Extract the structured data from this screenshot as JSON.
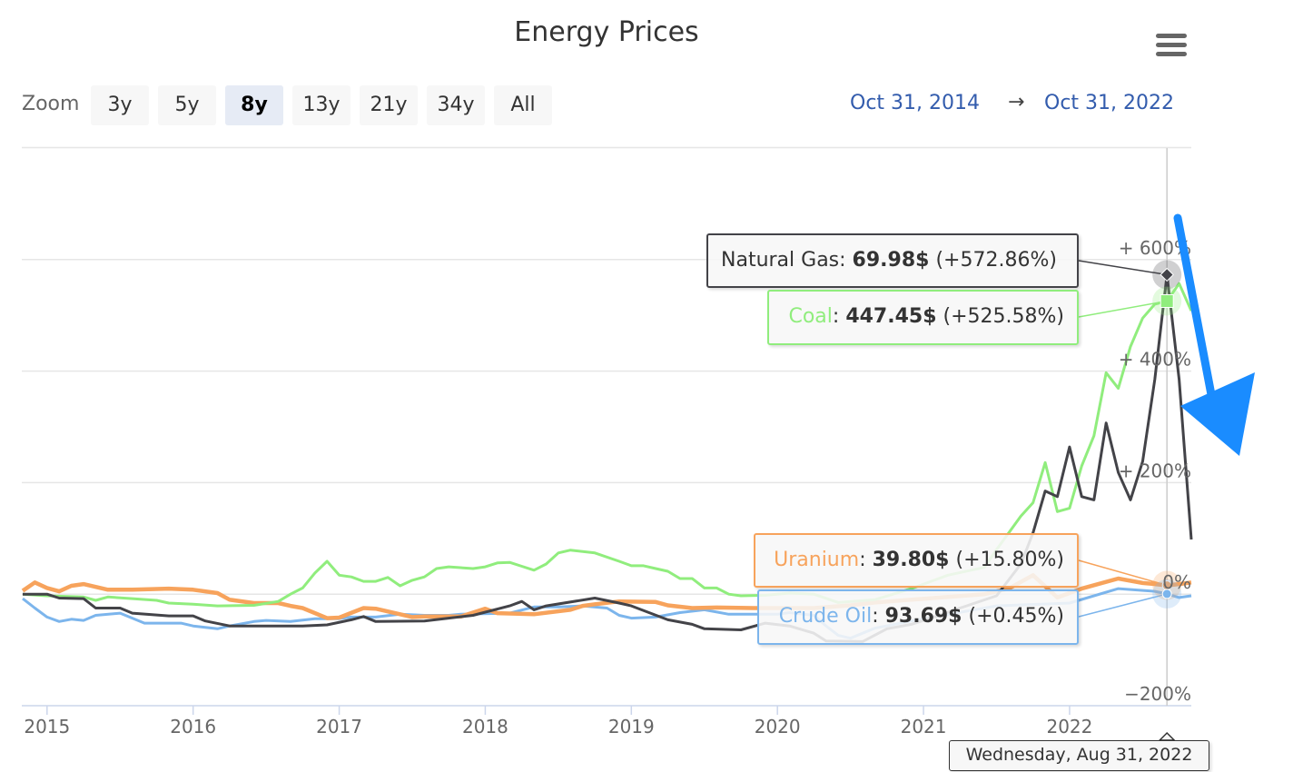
{
  "header": {
    "title": "Energy Prices",
    "menu_icon": "hamburger-menu-icon"
  },
  "range_selector": {
    "zoom_label": "Zoom",
    "buttons": [
      "3y",
      "5y",
      "8y",
      "13y",
      "21y",
      "34y",
      "All"
    ],
    "selected": "8y",
    "from": "Oct 31, 2014",
    "separator": "→",
    "to": "Oct 31, 2022"
  },
  "tooltip": {
    "date": "Wednesday, Aug 31, 2022",
    "rows": [
      {
        "series": "Natural Gas",
        "value": "69.98$",
        "change": "(+572.86%)",
        "color": "#434348"
      },
      {
        "series": "Coal",
        "value": "447.45$",
        "change": "(+525.58%)",
        "color": "#90ed7d"
      },
      {
        "series": "Uranium",
        "value": "39.80$",
        "change": "(+15.80%)",
        "color": "#f7a35c"
      },
      {
        "series": "Crude Oil",
        "value": "93.69$",
        "change": "(+0.45%)",
        "color": "#7cb5ec"
      }
    ]
  },
  "annotation": {
    "type": "arrow-down",
    "color": "#1a8cff"
  },
  "chart_data": {
    "type": "line",
    "title": "Energy Prices",
    "compare": "percent",
    "x_range": [
      "2014-10",
      "2022-10"
    ],
    "ylim": [
      -200,
      800
    ],
    "x_ticks": [
      "2015",
      "2016",
      "2017",
      "2018",
      "2019",
      "2020",
      "2021",
      "2022"
    ],
    "y_ticks": [
      {
        "value": 600,
        "label": "+ 600%"
      },
      {
        "value": 400,
        "label": "+ 400%"
      },
      {
        "value": 200,
        "label": "+ 200%"
      },
      {
        "value": 0,
        "label": "0%"
      },
      {
        "value": -200,
        "label": "−200%"
      }
    ],
    "grid": true,
    "crosshair_date": "2022-08",
    "series": [
      {
        "name": "Natural Gas",
        "color": "#434348",
        "points": [
          [
            "2014-10",
            0
          ],
          [
            "2014-12",
            0
          ],
          [
            "2015-01",
            -7
          ],
          [
            "2015-03",
            -8
          ],
          [
            "2015-04",
            -25
          ],
          [
            "2015-06",
            -25
          ],
          [
            "2015-07",
            -34
          ],
          [
            "2015-10",
            -39
          ],
          [
            "2015-12",
            -39
          ],
          [
            "2016-01",
            -48
          ],
          [
            "2016-03",
            -57
          ],
          [
            "2016-09",
            -57
          ],
          [
            "2016-11",
            -55
          ],
          [
            "2017-01",
            -46
          ],
          [
            "2017-02",
            -40
          ],
          [
            "2017-03",
            -49
          ],
          [
            "2017-07",
            -48
          ],
          [
            "2017-11",
            -38
          ],
          [
            "2018-02",
            -21
          ],
          [
            "2018-03",
            -13
          ],
          [
            "2018-04",
            -28
          ],
          [
            "2018-05",
            -21
          ],
          [
            "2018-09",
            -7
          ],
          [
            "2018-11",
            -16
          ],
          [
            "2018-12",
            -21
          ],
          [
            "2019-03",
            -46
          ],
          [
            "2019-05",
            -54
          ],
          [
            "2019-06",
            -62
          ],
          [
            "2019-09",
            -64
          ],
          [
            "2019-11",
            -52
          ],
          [
            "2020-01",
            -57
          ],
          [
            "2020-03",
            -70
          ],
          [
            "2020-04",
            -84
          ],
          [
            "2020-07",
            -85
          ],
          [
            "2020-09",
            -62
          ],
          [
            "2020-11",
            -54
          ],
          [
            "2021-01",
            -40
          ],
          [
            "2021-03",
            -25
          ],
          [
            "2021-06",
            -3
          ],
          [
            "2021-08",
            54
          ],
          [
            "2021-09",
            110
          ],
          [
            "2021-10",
            185
          ],
          [
            "2021-11",
            175
          ],
          [
            "2021-12",
            264
          ],
          [
            "2022-01",
            175
          ],
          [
            "2022-02",
            169
          ],
          [
            "2022-03",
            307
          ],
          [
            "2022-04",
            218
          ],
          [
            "2022-05",
            169
          ],
          [
            "2022-06",
            238
          ],
          [
            "2022-07",
            385
          ],
          [
            "2022-08",
            572.86
          ],
          [
            "2022-09",
            385
          ],
          [
            "2022-10",
            98
          ]
        ]
      },
      {
        "name": "Coal",
        "color": "#90ed7d",
        "points": [
          [
            "2014-10",
            0
          ],
          [
            "2014-12",
            -3
          ],
          [
            "2015-03",
            -5
          ],
          [
            "2015-04",
            -11
          ],
          [
            "2015-05",
            -5
          ],
          [
            "2015-07",
            -8
          ],
          [
            "2015-09",
            -11
          ],
          [
            "2015-10",
            -16
          ],
          [
            "2015-12",
            -18
          ],
          [
            "2016-02",
            -21
          ],
          [
            "2016-05",
            -20
          ],
          [
            "2016-07",
            -13
          ],
          [
            "2016-08",
            0
          ],
          [
            "2016-09",
            11
          ],
          [
            "2016-10",
            38
          ],
          [
            "2016-11",
            59
          ],
          [
            "2016-12",
            34
          ],
          [
            "2017-01",
            31
          ],
          [
            "2017-02",
            23
          ],
          [
            "2017-03",
            23
          ],
          [
            "2017-04",
            30
          ],
          [
            "2017-05",
            15
          ],
          [
            "2017-06",
            25
          ],
          [
            "2017-07",
            31
          ],
          [
            "2017-08",
            46
          ],
          [
            "2017-09",
            49
          ],
          [
            "2017-11",
            46
          ],
          [
            "2017-12",
            49
          ],
          [
            "2018-01",
            56
          ],
          [
            "2018-02",
            57
          ],
          [
            "2018-03",
            50
          ],
          [
            "2018-04",
            43
          ],
          [
            "2018-05",
            54
          ],
          [
            "2018-06",
            74
          ],
          [
            "2018-07",
            79
          ],
          [
            "2018-09",
            74
          ],
          [
            "2018-11",
            59
          ],
          [
            "2018-12",
            51
          ],
          [
            "2019-01",
            51
          ],
          [
            "2019-02",
            46
          ],
          [
            "2019-03",
            41
          ],
          [
            "2019-04",
            28
          ],
          [
            "2019-05",
            28
          ],
          [
            "2019-06",
            11
          ],
          [
            "2019-07",
            11
          ],
          [
            "2019-08",
            0
          ],
          [
            "2019-09",
            -3
          ],
          [
            "2019-11",
            -2
          ],
          [
            "2020-01",
            2
          ],
          [
            "2020-03",
            0
          ],
          [
            "2020-05",
            -15
          ],
          [
            "2020-08",
            -10
          ],
          [
            "2020-11",
            10
          ],
          [
            "2021-02",
            34
          ],
          [
            "2021-05",
            48
          ],
          [
            "2021-06",
            80
          ],
          [
            "2021-07",
            110
          ],
          [
            "2021-08",
            140
          ],
          [
            "2021-09",
            164
          ],
          [
            "2021-10",
            236
          ],
          [
            "2021-11",
            148
          ],
          [
            "2021-12",
            154
          ],
          [
            "2022-01",
            230
          ],
          [
            "2022-02",
            284
          ],
          [
            "2022-03",
            397
          ],
          [
            "2022-04",
            369
          ],
          [
            "2022-05",
            444
          ],
          [
            "2022-06",
            495
          ],
          [
            "2022-07",
            520
          ],
          [
            "2022-08",
            525.58
          ],
          [
            "2022-09",
            557
          ],
          [
            "2022-10",
            508
          ]
        ]
      },
      {
        "name": "Uranium",
        "color": "#f7a35c",
        "points": [
          [
            "2014-10",
            6
          ],
          [
            "2014-11",
            21
          ],
          [
            "2014-12",
            11
          ],
          [
            "2015-01",
            5
          ],
          [
            "2015-02",
            15
          ],
          [
            "2015-03",
            18
          ],
          [
            "2015-05",
            8
          ],
          [
            "2015-07",
            8
          ],
          [
            "2015-10",
            10
          ],
          [
            "2015-12",
            8
          ],
          [
            "2016-02",
            2
          ],
          [
            "2016-03",
            -10
          ],
          [
            "2016-05",
            -16
          ],
          [
            "2016-07",
            -16
          ],
          [
            "2016-08",
            -21
          ],
          [
            "2016-09",
            -25
          ],
          [
            "2016-11",
            -43
          ],
          [
            "2016-12",
            -42
          ],
          [
            "2017-02",
            -25
          ],
          [
            "2017-03",
            -26
          ],
          [
            "2017-05",
            -36
          ],
          [
            "2017-06",
            -41
          ],
          [
            "2017-07",
            -40
          ],
          [
            "2017-10",
            -40
          ],
          [
            "2017-12",
            -26
          ],
          [
            "2018-01",
            -34
          ],
          [
            "2018-04",
            -36
          ],
          [
            "2018-07",
            -28
          ],
          [
            "2018-08",
            -21
          ],
          [
            "2018-09",
            -18
          ],
          [
            "2018-11",
            -13
          ],
          [
            "2019-02",
            -14
          ],
          [
            "2019-03",
            -20
          ],
          [
            "2019-05",
            -25
          ],
          [
            "2019-07",
            -24
          ],
          [
            "2019-10",
            -25
          ],
          [
            "2020-03",
            -25
          ],
          [
            "2020-06",
            -20
          ],
          [
            "2020-08",
            -15
          ],
          [
            "2020-11",
            -10
          ],
          [
            "2021-02",
            -5
          ],
          [
            "2021-05",
            0
          ],
          [
            "2021-07",
            10
          ],
          [
            "2021-09",
            34
          ],
          [
            "2021-11",
            -6
          ],
          [
            "2022-01",
            10
          ],
          [
            "2022-04",
            28
          ],
          [
            "2022-06",
            20
          ],
          [
            "2022-07",
            18
          ],
          [
            "2022-08",
            15.8
          ],
          [
            "2022-09",
            18
          ],
          [
            "2022-10",
            21
          ]
        ]
      },
      {
        "name": "Crude Oil",
        "color": "#7cb5ec",
        "points": [
          [
            "2014-10",
            -8
          ],
          [
            "2014-11",
            -25
          ],
          [
            "2014-12",
            -41
          ],
          [
            "2015-01",
            -49
          ],
          [
            "2015-02",
            -45
          ],
          [
            "2015-03",
            -47
          ],
          [
            "2015-04",
            -38
          ],
          [
            "2015-06",
            -34
          ],
          [
            "2015-08",
            -52
          ],
          [
            "2015-11",
            -52
          ],
          [
            "2015-12",
            -57
          ],
          [
            "2016-02",
            -62
          ],
          [
            "2016-03",
            -57
          ],
          [
            "2016-05",
            -49
          ],
          [
            "2016-06",
            -47
          ],
          [
            "2016-08",
            -49
          ],
          [
            "2016-10",
            -44
          ],
          [
            "2016-12",
            -44
          ],
          [
            "2017-01",
            -41
          ],
          [
            "2017-03",
            -41
          ],
          [
            "2017-05",
            -36
          ],
          [
            "2017-07",
            -38
          ],
          [
            "2017-09",
            -38
          ],
          [
            "2017-10",
            -36
          ],
          [
            "2018-02",
            -34
          ],
          [
            "2018-04",
            -23
          ],
          [
            "2018-06",
            -23
          ],
          [
            "2018-08",
            -21
          ],
          [
            "2018-10",
            -25
          ],
          [
            "2018-11",
            -38
          ],
          [
            "2018-12",
            -43
          ],
          [
            "2019-02",
            -41
          ],
          [
            "2019-04",
            -33
          ],
          [
            "2019-06",
            -28
          ],
          [
            "2019-08",
            -36
          ],
          [
            "2019-10",
            -36
          ],
          [
            "2019-12",
            -36
          ],
          [
            "2020-01",
            -33
          ],
          [
            "2020-03",
            -38
          ],
          [
            "2020-04",
            -57
          ],
          [
            "2020-05",
            -74
          ],
          [
            "2020-06",
            -79
          ],
          [
            "2020-08",
            -61
          ],
          [
            "2020-11",
            -48
          ],
          [
            "2021-06",
            -21
          ],
          [
            "2021-12",
            -16
          ],
          [
            "2022-04",
            10
          ],
          [
            "2022-07",
            5
          ],
          [
            "2022-08",
            0.45
          ],
          [
            "2022-09",
            -6
          ],
          [
            "2022-10",
            -3
          ]
        ]
      }
    ]
  }
}
